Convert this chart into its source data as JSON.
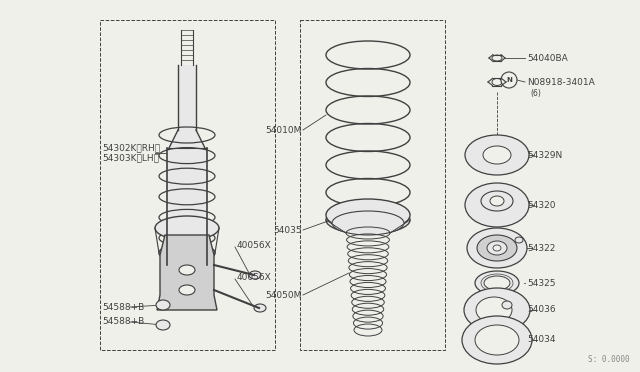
{
  "bg_color": "#f0f0eb",
  "line_color": "#404040",
  "fill_light": "#e8e8e8",
  "fill_mid": "#d0d0d0",
  "watermark": "S: 0.0000",
  "labels": {
    "54302K_RH": "54302K〈RH〉",
    "54303K_LH": "54303K〈LH〉",
    "40056X_top": "40056X",
    "40056X_bot": "40056X",
    "54588B_top": "54588+B",
    "54588B_bot": "54588+B",
    "54010M": "54010M",
    "54035": "54035",
    "54050M": "54050M",
    "54040BA": "54040BA",
    "N08918": "N08918-3401A",
    "N08918_sub": "(6)",
    "54329N": "54329N",
    "54320": "54320",
    "54322": "54322",
    "54325": "54325",
    "54036": "54036",
    "54034": "54034"
  },
  "font_size": 6.5
}
